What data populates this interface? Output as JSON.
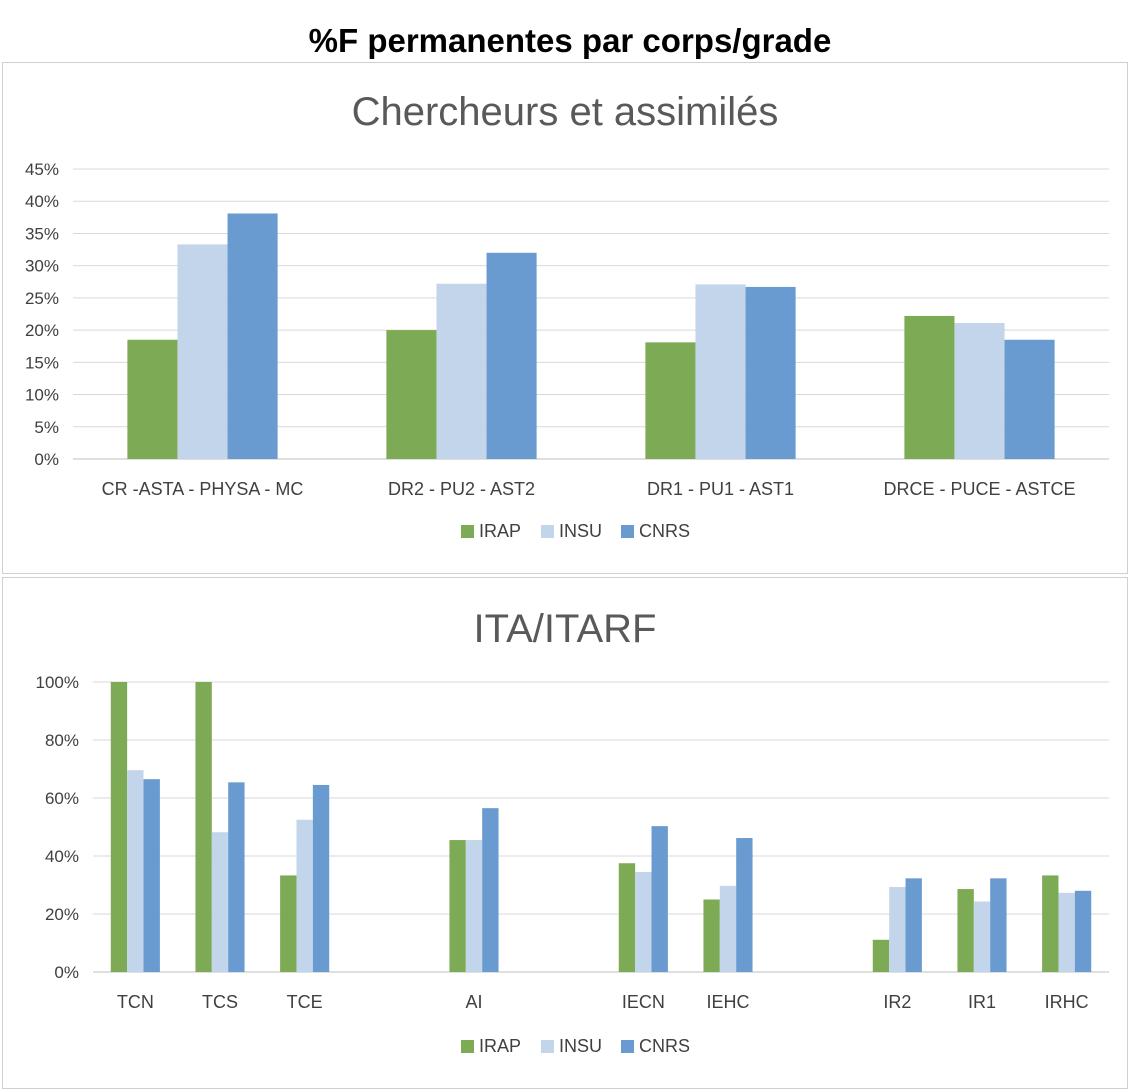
{
  "page_title": "%F permanentes par corps/grade",
  "chart_data": [
    {
      "type": "bar",
      "title": "Chercheurs et assimilés",
      "xlabel": "",
      "ylabel": "",
      "ylim": [
        0,
        0.45
      ],
      "yticks": [
        "0%",
        "5%",
        "10%",
        "15%",
        "20%",
        "25%",
        "30%",
        "35%",
        "40%",
        "45%"
      ],
      "categories": [
        "CR -ASTA - PHYSA - MC",
        "DR2 - PU2 - AST2",
        "DR1 - PU1 - AST1",
        "DRCE - PUCE - ASTCE"
      ],
      "series": [
        {
          "name": "IRAP",
          "color": "#7daa54",
          "values": [
            0.185,
            0.2,
            0.181,
            0.222
          ]
        },
        {
          "name": "INSU",
          "color": "#c3d5ea",
          "values": [
            0.333,
            0.272,
            0.271,
            0.211
          ]
        },
        {
          "name": "CNRS",
          "color": "#6a9bd0",
          "values": [
            0.381,
            0.32,
            0.267,
            0.185
          ]
        }
      ],
      "grid": true,
      "legend": "bottom"
    },
    {
      "type": "bar",
      "title": "ITA/ITARF",
      "xlabel": "",
      "ylabel": "",
      "ylim": [
        0,
        1.0
      ],
      "yticks": [
        "0%",
        "20%",
        "40%",
        "60%",
        "80%",
        "100%"
      ],
      "categories": [
        "TCN",
        "TCS",
        "TCE",
        "",
        "AI",
        "",
        "IECN",
        "IEHC",
        "",
        "IR2",
        "IR1",
        "IRHC"
      ],
      "series": [
        {
          "name": "IRAP",
          "color": "#7daa54",
          "values": [
            1.0,
            1.0,
            0.333,
            null,
            0.455,
            null,
            0.375,
            0.25,
            null,
            0.111,
            0.286,
            0.333
          ]
        },
        {
          "name": "INSU",
          "color": "#c3d5ea",
          "values": [
            0.696,
            0.482,
            0.525,
            null,
            0.455,
            null,
            0.345,
            0.297,
            null,
            0.293,
            0.243,
            0.273
          ]
        },
        {
          "name": "CNRS",
          "color": "#6a9bd0",
          "values": [
            0.665,
            0.654,
            0.645,
            null,
            0.565,
            null,
            0.503,
            0.462,
            null,
            0.323,
            0.323,
            0.28
          ]
        }
      ],
      "grid": true,
      "legend": "bottom"
    }
  ]
}
